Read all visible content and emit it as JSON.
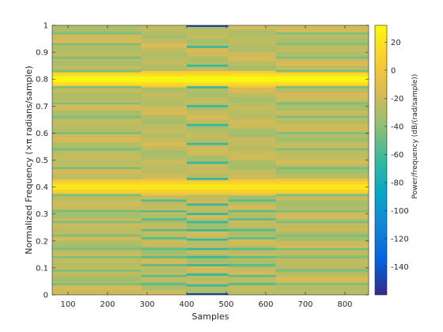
{
  "chart_data": {
    "type": "heatmap",
    "xlabel": "Samples",
    "ylabel": "Normalized Frequency (×π radians/sample)",
    "colorbar_label": "Power/frequency (dB/(rad/sample))",
    "colormap": "parula",
    "x_range": [
      60,
      860
    ],
    "y_range": [
      0,
      1
    ],
    "clim": [
      -160,
      32
    ],
    "x_ticks": [
      100,
      200,
      300,
      400,
      500,
      600,
      700,
      800
    ],
    "y_ticks": [
      "0",
      "0.1",
      "0.2",
      "0.3",
      "0.4",
      "0.5",
      "0.6",
      "0.7",
      "0.8",
      "0.9",
      "1"
    ],
    "colorbar_ticks": [
      0,
      -20,
      -40,
      -60,
      -80,
      -100,
      -120,
      -140,
      20
    ],
    "time_segments": [
      {
        "x_start": 60,
        "x_end": 285
      },
      {
        "x_start": 285,
        "x_end": 400
      },
      {
        "x_start": 400,
        "x_end": 505
      },
      {
        "x_start": 505,
        "x_end": 625
      },
      {
        "x_start": 625,
        "x_end": 860
      }
    ],
    "tones": [
      {
        "frequency": 0.4,
        "power_db": 22
      },
      {
        "frequency": 0.8,
        "power_db": 30
      }
    ],
    "background_db": -25,
    "notches": [
      {
        "segment": 0,
        "frequencies": [
          0.04,
          0.09,
          0.14,
          0.17,
          0.22,
          0.27,
          0.31,
          0.37,
          0.47,
          0.54,
          0.6,
          0.66,
          0.71,
          0.77,
          0.83,
          0.88,
          0.93,
          0.97
        ],
        "power_db": -45
      },
      {
        "segment": 1,
        "frequencies": [
          0.04,
          0.07,
          0.11,
          0.14,
          0.17,
          0.21,
          0.24,
          0.28,
          0.31,
          0.35
        ],
        "power_db": -55
      },
      {
        "segment": 2,
        "frequencies": [
          0.035,
          0.075,
          0.11,
          0.14,
          0.17,
          0.205,
          0.24,
          0.27,
          0.3,
          0.335,
          0.43,
          0.49,
          0.56,
          0.63,
          0.7,
          0.77,
          0.85,
          0.92
        ],
        "power_db": -65
      },
      {
        "segment": 2,
        "frequencies": [
          0.0,
          1.0
        ],
        "power_db": -150
      },
      {
        "segment": 3,
        "frequencies": [
          0.04,
          0.07,
          0.11,
          0.14,
          0.17,
          0.21,
          0.24,
          0.28,
          0.31,
          0.35
        ],
        "power_db": -55
      },
      {
        "segment": 4,
        "frequencies": [
          0.04,
          0.09,
          0.14,
          0.17,
          0.22,
          0.27,
          0.31,
          0.37,
          0.47,
          0.54,
          0.6,
          0.66,
          0.71,
          0.77,
          0.83,
          0.88,
          0.93,
          0.97
        ],
        "power_db": -45
      }
    ]
  }
}
